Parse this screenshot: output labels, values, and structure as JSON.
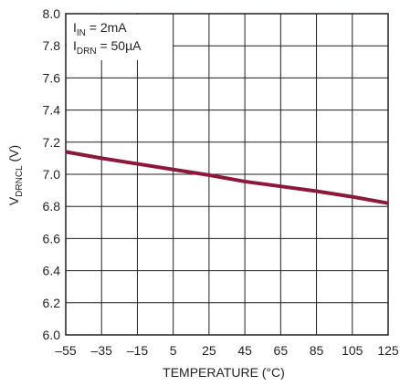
{
  "chart_data": {
    "type": "line",
    "title": "",
    "xlabel": "TEMPERATURE (°C)",
    "ylabel": {
      "main": "V",
      "sub": "DRNCL",
      "unit": " (V)"
    },
    "xlim": [
      -55,
      125
    ],
    "ylim": [
      6.0,
      8.0
    ],
    "x_ticks": [
      -55,
      -35,
      -15,
      5,
      25,
      45,
      65,
      85,
      105,
      125
    ],
    "x_tick_labels": [
      "–55",
      "–35",
      "–15",
      "5",
      "25",
      "45",
      "65",
      "85",
      "105",
      "125"
    ],
    "y_ticks": [
      6.0,
      6.2,
      6.4,
      6.6,
      6.8,
      7.0,
      7.2,
      7.4,
      7.6,
      7.8,
      8.0
    ],
    "y_tick_labels": [
      "6.0",
      "6.2",
      "6.4",
      "6.6",
      "6.8",
      "7.0",
      "7.2",
      "7.4",
      "7.6",
      "7.8",
      "8.0"
    ],
    "grid": true,
    "annotations": [
      {
        "main": "I",
        "sub": "IN",
        "rest": " = 2mA"
      },
      {
        "main": "I",
        "sub": "DRN",
        "rest": " = 50µA"
      }
    ],
    "series": [
      {
        "color": "#8b1a3a",
        "x": [
          -55,
          -35,
          -15,
          5,
          25,
          45,
          65,
          85,
          105,
          125
        ],
        "y": [
          7.14,
          7.1,
          7.065,
          7.03,
          6.995,
          6.955,
          6.925,
          6.895,
          6.86,
          6.82
        ]
      }
    ]
  }
}
